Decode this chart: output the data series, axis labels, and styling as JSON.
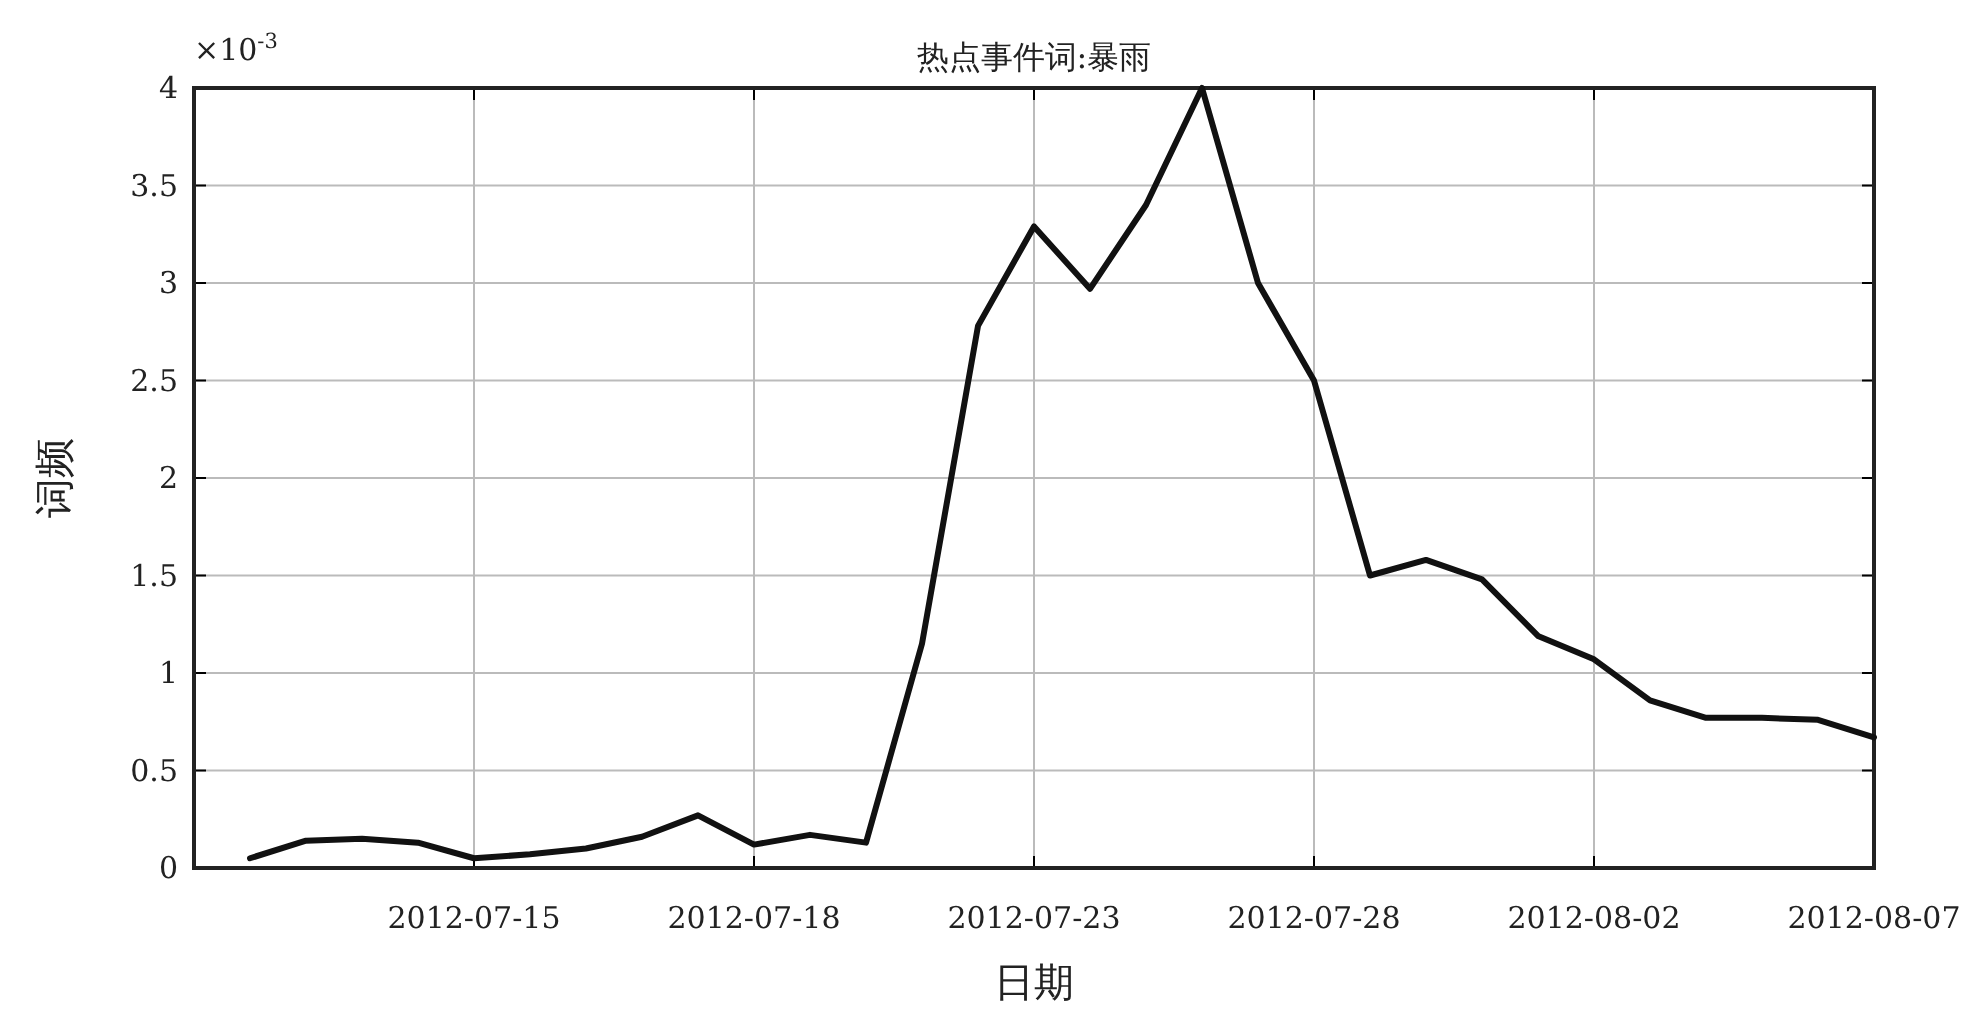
{
  "chart_data": {
    "type": "line",
    "title": "热点事件词:暴雨",
    "xlabel": "日期",
    "ylabel": "词频",
    "annotations": [
      "×10$^{-3}$"
    ],
    "categories": [
      null,
      null,
      null,
      null,
      "2012-07-15",
      null,
      null,
      null,
      null,
      "2012-07-18",
      null,
      null,
      null,
      null,
      "2012-07-23",
      null,
      null,
      null,
      null,
      "2012-07-28",
      null,
      null,
      null,
      null,
      "2012-08-02",
      null,
      null,
      null,
      null,
      "2012-08-07"
    ],
    "series": [
      {
        "color": "#111111",
        "values": [
          0.05,
          0.14,
          0.15,
          0.13,
          0.05,
          0.07,
          0.1,
          0.16,
          0.27,
          0.12,
          0.17,
          0.13,
          1.15,
          2.78,
          3.29,
          2.97,
          3.4,
          4.0,
          3.0,
          2.5,
          1.5,
          1.58,
          1.48,
          1.19,
          1.07,
          0.86,
          0.77,
          0.77,
          0.76,
          0.67
        ]
      }
    ],
    "ylim": [
      0,
      4
    ],
    "yticks": [
      0,
      0.5,
      1,
      1.5,
      2,
      2.5,
      3,
      3.5,
      4
    ],
    "grid": true,
    "marker": "none",
    "line_style": "solid"
  }
}
